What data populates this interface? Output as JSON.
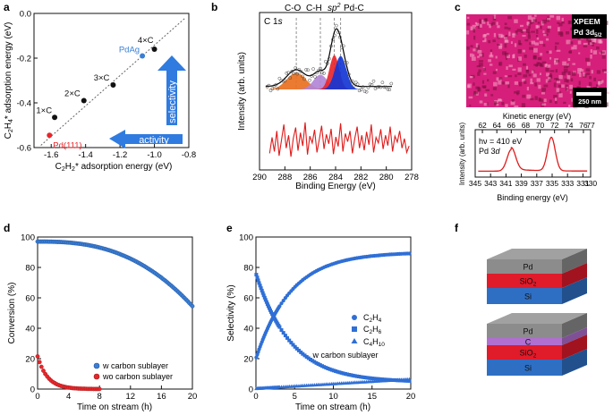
{
  "panel_letters": [
    "a",
    "b",
    "c",
    "d",
    "e",
    "f"
  ],
  "colors": {
    "black": "#111111",
    "pd111": "#e8262b",
    "pdag": "#3a7fd5",
    "arrow": "#2f7be0",
    "xps_red": "#e01b1b",
    "fit_black": "#000000",
    "peak_co": "#e8701e",
    "peak_ch": "#b285d6",
    "peak_sp2": "#e8262b",
    "peak_pdc": "#1436d4",
    "conv_w": "#3a7fd5",
    "conv_wo": "#e8262b",
    "sel": "#2f6fd6",
    "layer_pd": "#8c8c8c",
    "layer_c": "#b16fd0",
    "layer_sio2": "#e01b2a",
    "layer_si": "#2e6fc4"
  },
  "chart_data": [
    {
      "id": "a",
      "type": "scatter",
      "xlabel": "C2H2* adsorption energy (eV)",
      "ylabel": "C2H4* adsorption energy (eV)",
      "xlim": [
        -1.7,
        -0.8
      ],
      "ylim": [
        -0.6,
        0.0
      ],
      "xticks": [
        "-1.6",
        "-1.4",
        "-1.2",
        "-1.0",
        "-0.8"
      ],
      "yticks": [
        "0.0",
        "-0.2",
        "-0.4",
        "-0.6"
      ],
      "points": [
        {
          "label": "Pd(111)",
          "x": -1.61,
          "y": -0.545,
          "color": "pd111"
        },
        {
          "label": "1×C",
          "x": -1.58,
          "y": -0.465,
          "color": "black"
        },
        {
          "label": "2×C",
          "x": -1.41,
          "y": -0.39,
          "color": "black"
        },
        {
          "label": "3×C",
          "x": -1.24,
          "y": -0.32,
          "color": "black"
        },
        {
          "label": "PdAg",
          "x": -1.07,
          "y": -0.19,
          "color": "pdag"
        },
        {
          "label": "4×C",
          "x": -1.0,
          "y": -0.16,
          "color": "black"
        }
      ],
      "trend_line": {
        "x": [
          -1.66,
          -0.82
        ],
        "y": [
          -0.59,
          -0.02
        ]
      },
      "annotations": {
        "selectivity": "selectivity",
        "activity": "activity"
      }
    },
    {
      "id": "b",
      "type": "line",
      "xlabel": "Binding Energy (eV)",
      "ylabel": "Intensity (arb. units)",
      "xlim": [
        290,
        278
      ],
      "xticks": [
        "290",
        "288",
        "286",
        "284",
        "282",
        "280",
        "278"
      ],
      "inner_label_main": "C 1",
      "inner_label_sub": "s",
      "peak_labels": {
        "co": "C-O",
        "ch": "C-H",
        "sp": "sp",
        "sp_sup": "2",
        "pdc": "Pd-C"
      },
      "peaks": [
        {
          "name": "C-O",
          "center": 287.1,
          "amplitude": 0.17,
          "width": 0.75
        },
        {
          "name": "C-H",
          "center": 285.2,
          "amplitude": 0.15,
          "width": 0.55
        },
        {
          "name": "sp2",
          "center": 284.1,
          "amplitude": 0.35,
          "width": 0.38
        },
        {
          "name": "Pd-C",
          "center": 283.6,
          "amplitude": 0.34,
          "width": 0.45
        }
      ],
      "dashed_lines": [
        287.1,
        285.2,
        284.1,
        283.6
      ],
      "difference_series": [
        0.18,
        0.55,
        0.22,
        0.7,
        0.12,
        0.48,
        0.85,
        0.3,
        0.6,
        0.1,
        0.52,
        0.78,
        0.24,
        0.66,
        0.35,
        0.9,
        0.15,
        0.58,
        0.42,
        0.73,
        0.2,
        0.5,
        0.82,
        0.28,
        0.62,
        0.4,
        0.75,
        0.16,
        0.56,
        0.34,
        0.88,
        0.22,
        0.64,
        0.45,
        0.7,
        0.18,
        0.52,
        0.8,
        0.3,
        0.6,
        0.25,
        0.68,
        0.38,
        0.85,
        0.2,
        0.55,
        0.42,
        0.74,
        0.28,
        0.6,
        0.36,
        0.8,
        0.22,
        0.58,
        0.44,
        0.7,
        0.3,
        0.52,
        0.2,
        0.35
      ]
    },
    {
      "id": "c",
      "type": "line",
      "image_label_1": "XPEEM",
      "image_label_2": "Pd 3d",
      "image_label_2_sub": "5/2",
      "scale_bar": "250 nm",
      "top_axis_label": "Kinetic energy (eV)",
      "top_ticks": [
        "62",
        "64",
        "66",
        "68",
        "70",
        "72",
        "74",
        "76",
        "77"
      ],
      "xlabel": "Binding energy (eV)",
      "ylabel": "Intensity (arb. units)",
      "xlim": [
        345,
        330
      ],
      "xticks": [
        "345",
        "343",
        "341",
        "339",
        "337",
        "335",
        "333",
        "331",
        "330"
      ],
      "hv_label": "hν = 410 eV",
      "pd_label_main": "Pd 3",
      "pd_label_sub": "d",
      "peaks": [
        {
          "center": 340.3,
          "amplitude": 0.55,
          "width": 0.55
        },
        {
          "center": 335.1,
          "amplitude": 0.85,
          "width": 0.5
        }
      ]
    },
    {
      "id": "d",
      "type": "scatter",
      "xlabel": "Time on stream (h)",
      "ylabel": "Conversion (%)",
      "xlim": [
        0,
        20
      ],
      "ylim": [
        0,
        100
      ],
      "xticks": [
        "0",
        "4",
        "8",
        "12",
        "16",
        "20"
      ],
      "yticks": [
        "0",
        "20",
        "40",
        "60",
        "80",
        "100"
      ],
      "series": [
        {
          "name": "w carbon sublayer",
          "color": "conv_w",
          "model": {
            "type": "decay",
            "start": 97.0,
            "end": 54.5,
            "t_end": 20,
            "exponent": 2.6
          }
        },
        {
          "name": "wo carbon sublayer",
          "color": "conv_wo",
          "model": {
            "type": "exp",
            "start": 21.5,
            "tau": 1.3,
            "t_end": 8
          }
        }
      ]
    },
    {
      "id": "e",
      "type": "scatter",
      "xlabel": "Time on stream (h)",
      "ylabel": "Selectivity (%)",
      "xlim": [
        0,
        20
      ],
      "ylim": [
        0,
        100
      ],
      "xticks": [
        "0",
        "5",
        "10",
        "15",
        "20"
      ],
      "yticks": [
        "0",
        "20",
        "40",
        "60",
        "80",
        "100"
      ],
      "legend_note": "w carbon sublayer",
      "series": [
        {
          "name": "C2H4",
          "label_main": "C",
          "label_sub1": "2",
          "label_mid": "H",
          "label_sub2": "4",
          "marker": "circle",
          "model": {
            "type": "rise",
            "start": 20.0,
            "end": 90.0,
            "tau": 4.5
          }
        },
        {
          "name": "C2H6",
          "label_main": "C",
          "label_sub1": "2",
          "label_mid": "H",
          "label_sub2": "6",
          "marker": "square",
          "model": {
            "type": "fall",
            "start": 76.0,
            "end": 4.5,
            "tau": 4.5
          }
        },
        {
          "name": "C4H10",
          "label_main": "C",
          "label_sub1": "4",
          "label_mid": "H",
          "label_sub2": "10",
          "marker": "triangle",
          "model": {
            "type": "linear",
            "start": 0.3,
            "end": 6.5
          }
        }
      ]
    }
  ],
  "diagram_f": {
    "stacks": [
      {
        "layers": [
          {
            "name": "Pd",
            "label": "Pd"
          },
          {
            "name": "SiO2",
            "label_main": "SiO",
            "label_sub": "2"
          },
          {
            "name": "Si",
            "label": "Si"
          }
        ]
      },
      {
        "layers": [
          {
            "name": "Pd",
            "label": "Pd"
          },
          {
            "name": "C",
            "label": "C"
          },
          {
            "name": "SiO2",
            "label_main": "SiO",
            "label_sub": "2"
          },
          {
            "name": "Si",
            "label": "Si"
          }
        ]
      }
    ]
  },
  "axis_text": {
    "a_x_main": "C",
    "a_x_s1": "2",
    "a_x_m": "H",
    "a_x_s2": "2",
    "a_x_rest": "* adsorption energy (eV)",
    "a_y_main": "C",
    "a_y_s1": "2",
    "a_y_m": "H",
    "a_y_s2": "4",
    "a_y_rest": "* adsorption energy (eV)"
  }
}
